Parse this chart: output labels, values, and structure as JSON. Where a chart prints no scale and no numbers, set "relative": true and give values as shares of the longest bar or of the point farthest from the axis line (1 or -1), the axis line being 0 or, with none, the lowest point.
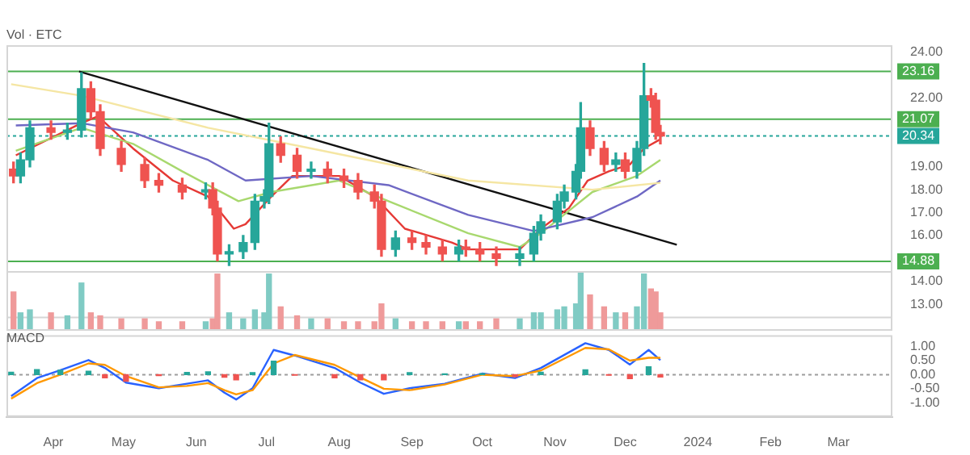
{
  "chart_data": [
    {
      "type": "candlestick",
      "x": [
        "2023-03-15",
        "2023-03-18",
        "2023-03-22",
        "2023-03-31",
        "2023-04-07",
        "2023-04-13",
        "2023-04-17",
        "2023-04-21",
        "2023-04-30",
        "2023-05-10",
        "2023-05-16",
        "2023-05-26",
        "2023-06-05",
        "2023-06-08",
        "2023-06-10",
        "2023-06-15",
        "2023-06-21",
        "2023-06-26",
        "2023-06-30",
        "2023-07-02",
        "2023-07-07",
        "2023-07-14",
        "2023-07-20",
        "2023-07-27",
        "2023-08-03",
        "2023-08-09",
        "2023-08-16",
        "2023-08-19",
        "2023-08-25",
        "2023-09-01",
        "2023-09-07",
        "2023-09-14",
        "2023-09-21",
        "2023-09-24",
        "2023-09-30",
        "2023-10-07",
        "2023-10-17",
        "2023-10-23",
        "2023-10-26",
        "2023-11-02",
        "2023-11-05",
        "2023-11-10",
        "2023-11-12",
        "2023-11-16",
        "2023-11-22",
        "2023-11-27",
        "2023-12-01",
        "2023-12-06",
        "2023-12-09",
        "2023-12-12",
        "2023-12-14",
        "2023-12-16"
      ],
      "ohlc": [
        [
          18.9,
          19.2,
          18.3,
          18.6
        ],
        [
          18.6,
          19.6,
          18.3,
          19.3
        ],
        [
          19.3,
          21.0,
          19.0,
          20.7
        ],
        [
          20.7,
          21.0,
          20.2,
          20.5
        ],
        [
          20.5,
          20.9,
          20.2,
          20.6
        ],
        [
          20.6,
          23.1,
          20.3,
          22.4
        ],
        [
          22.4,
          22.7,
          21.1,
          21.4
        ],
        [
          21.4,
          21.7,
          19.5,
          19.8
        ],
        [
          19.8,
          20.1,
          18.8,
          19.1
        ],
        [
          19.1,
          19.4,
          18.1,
          18.4
        ],
        [
          18.4,
          18.7,
          17.9,
          18.2
        ],
        [
          18.2,
          18.5,
          17.6,
          17.9
        ],
        [
          17.9,
          18.3,
          17.6,
          18.0
        ],
        [
          18.0,
          18.3,
          16.9,
          17.2
        ],
        [
          17.2,
          17.5,
          14.9,
          15.2
        ],
        [
          15.2,
          15.6,
          14.7,
          15.3
        ],
        [
          15.3,
          16.0,
          15.0,
          15.7
        ],
        [
          15.7,
          17.8,
          15.4,
          17.5
        ],
        [
          17.5,
          18.0,
          17.2,
          17.7
        ],
        [
          17.7,
          20.9,
          17.4,
          20.0
        ],
        [
          20.0,
          20.3,
          19.2,
          19.5
        ],
        [
          19.5,
          19.8,
          18.5,
          18.8
        ],
        [
          18.8,
          19.2,
          18.5,
          18.9
        ],
        [
          18.9,
          19.2,
          18.3,
          18.6
        ],
        [
          18.6,
          18.9,
          18.1,
          18.4
        ],
        [
          18.4,
          18.7,
          17.6,
          17.9
        ],
        [
          17.9,
          18.2,
          17.2,
          17.5
        ],
        [
          17.5,
          17.8,
          15.1,
          15.4
        ],
        [
          15.4,
          16.2,
          15.1,
          15.9
        ],
        [
          15.9,
          16.2,
          15.4,
          15.7
        ],
        [
          15.7,
          16.0,
          15.2,
          15.5
        ],
        [
          15.5,
          15.8,
          14.9,
          15.2
        ],
        [
          15.2,
          15.8,
          14.9,
          15.5
        ],
        [
          15.5,
          15.8,
          15.1,
          15.4
        ],
        [
          15.4,
          15.7,
          14.9,
          15.2
        ],
        [
          15.2,
          15.5,
          14.7,
          15.0
        ],
        [
          15.0,
          15.5,
          14.7,
          15.2
        ],
        [
          15.2,
          16.4,
          14.9,
          16.1
        ],
        [
          16.1,
          16.9,
          15.8,
          16.6
        ],
        [
          16.6,
          17.8,
          16.3,
          17.5
        ],
        [
          17.5,
          18.2,
          17.2,
          17.9
        ],
        [
          17.9,
          19.1,
          17.6,
          18.8
        ],
        [
          18.8,
          21.8,
          18.5,
          20.7
        ],
        [
          20.7,
          21.0,
          19.5,
          19.8
        ],
        [
          19.8,
          20.1,
          18.8,
          19.1
        ],
        [
          19.1,
          19.6,
          18.8,
          19.3
        ],
        [
          19.3,
          19.6,
          18.5,
          18.8
        ],
        [
          18.8,
          20.1,
          18.5,
          19.8
        ],
        [
          19.8,
          23.5,
          19.5,
          22.1
        ],
        [
          22.1,
          22.4,
          21.6,
          21.9
        ],
        [
          21.9,
          22.2,
          20.2,
          20.5
        ],
        [
          20.5,
          20.8,
          20.0,
          20.34
        ]
      ],
      "series": [
        {
          "type": "line",
          "color": "#f5e6a3",
          "x": [
            "2023-03-14",
            "2023-04-13",
            "2023-06-06",
            "2023-07-20",
            "2023-09-25",
            "2023-11-17",
            "2023-12-16"
          ],
          "values": [
            22.6,
            22.1,
            20.7,
            19.8,
            18.4,
            18.0,
            18.3
          ]
        },
        {
          "type": "line",
          "color": "#6f68c4",
          "x": [
            "2023-03-16",
            "2023-04-13",
            "2023-05-05",
            "2023-06-06",
            "2023-06-22",
            "2023-07-20",
            "2023-08-22",
            "2023-09-25",
            "2023-10-23",
            "2023-11-17",
            "2023-12-06",
            "2023-12-16"
          ],
          "values": [
            20.8,
            20.9,
            20.5,
            19.3,
            18.4,
            18.6,
            18.2,
            16.9,
            16.2,
            16.8,
            17.7,
            18.4
          ]
        },
        {
          "type": "line",
          "color": "#a8d86e",
          "x": [
            "2023-03-16",
            "2023-04-13",
            "2023-05-05",
            "2023-05-26",
            "2023-06-19",
            "2023-07-03",
            "2023-08-01",
            "2023-08-22",
            "2023-09-25",
            "2023-10-17",
            "2023-10-26",
            "2023-11-17",
            "2023-12-06",
            "2023-12-16"
          ],
          "values": [
            19.7,
            20.7,
            20.0,
            18.8,
            17.5,
            17.9,
            18.4,
            17.5,
            16.1,
            15.5,
            16.1,
            17.9,
            18.6,
            19.3
          ]
        },
        {
          "type": "line",
          "color": "#e53935",
          "x": [
            "2023-03-16",
            "2023-04-13",
            "2023-04-20",
            "2023-05-05",
            "2023-05-22",
            "2023-06-06",
            "2023-06-17",
            "2023-06-22",
            "2023-07-03",
            "2023-07-12",
            "2023-08-01",
            "2023-08-16",
            "2023-08-29",
            "2023-09-18",
            "2023-09-25",
            "2023-10-17",
            "2023-10-26",
            "2023-11-07",
            "2023-11-15",
            "2023-11-24",
            "2023-12-03",
            "2023-12-09",
            "2023-12-16"
          ],
          "values": [
            19.5,
            20.9,
            21.2,
            19.8,
            18.4,
            17.7,
            16.3,
            16.5,
            17.7,
            18.6,
            18.6,
            17.7,
            16.3,
            15.7,
            15.4,
            15.4,
            16.3,
            17.2,
            18.4,
            18.8,
            19.1,
            19.8,
            20.2
          ]
        },
        {
          "type": "line",
          "color": "#111111",
          "x": [
            "2023-04-12",
            "2023-12-23"
          ],
          "values": [
            23.15,
            15.6
          ]
        }
      ],
      "ref_lines": [
        {
          "axis": "y",
          "value": 23.16,
          "label": "23.16",
          "color": "#4caf50"
        },
        {
          "axis": "y",
          "value": 21.07,
          "label": "21.07",
          "color": "#4caf50"
        },
        {
          "axis": "y",
          "value": 14.88,
          "label": "14.88",
          "color": "#4caf50"
        },
        {
          "axis": "y",
          "value": 20.34,
          "label": "20.34",
          "color": "#26a69a",
          "line_style": "dotted"
        }
      ],
      "xlim": [
        "2023-03-12",
        "2024-03-24"
      ],
      "ylim": [
        12.4,
        24.3
      ],
      "yticks": [
        {
          "value": 13,
          "label": "13.00"
        },
        {
          "value": 14,
          "label": "14.00"
        },
        {
          "value": 16,
          "label": "16.00"
        },
        {
          "value": 17,
          "label": "17.00"
        },
        {
          "value": 18,
          "label": "18.00"
        },
        {
          "value": 19,
          "label": "19.00"
        },
        {
          "value": 22,
          "label": "22.00"
        },
        {
          "value": 24,
          "label": "24.00"
        }
      ],
      "tick_labels": "y"
    },
    {
      "type": "bar",
      "title": "Vol · ETC",
      "relative": true,
      "tick_labels": false,
      "xlim": [
        "2023-03-12",
        "2024-03-24"
      ],
      "x": [
        "2023-03-15",
        "2023-03-18",
        "2023-03-22",
        "2023-03-31",
        "2023-04-07",
        "2023-04-13",
        "2023-04-17",
        "2023-04-21",
        "2023-04-30",
        "2023-05-10",
        "2023-05-16",
        "2023-05-26",
        "2023-06-05",
        "2023-06-08",
        "2023-06-10",
        "2023-06-15",
        "2023-06-21",
        "2023-06-26",
        "2023-06-30",
        "2023-07-02",
        "2023-07-07",
        "2023-07-14",
        "2023-07-20",
        "2023-07-27",
        "2023-08-03",
        "2023-08-09",
        "2023-08-16",
        "2023-08-19",
        "2023-08-25",
        "2023-09-01",
        "2023-09-07",
        "2023-09-14",
        "2023-09-21",
        "2023-09-24",
        "2023-09-30",
        "2023-10-07",
        "2023-10-17",
        "2023-10-23",
        "2023-10-26",
        "2023-11-02",
        "2023-11-05",
        "2023-11-10",
        "2023-11-12",
        "2023-11-16",
        "2023-11-22",
        "2023-11-27",
        "2023-12-01",
        "2023-12-06",
        "2023-12-09",
        "2023-12-12",
        "2023-12-14",
        "2023-12-16"
      ],
      "values": [
        0.65,
        0.3,
        0.35,
        0.3,
        0.25,
        0.8,
        0.3,
        0.25,
        0.2,
        0.2,
        0.15,
        0.15,
        0.15,
        0.2,
        0.95,
        0.3,
        0.2,
        0.35,
        0.3,
        0.95,
        0.4,
        0.25,
        0.2,
        0.2,
        0.15,
        0.15,
        0.15,
        0.45,
        0.2,
        0.15,
        0.15,
        0.15,
        0.15,
        0.15,
        0.15,
        0.2,
        0.2,
        0.3,
        0.3,
        0.35,
        0.4,
        0.45,
        1,
        0.6,
        0.4,
        0.3,
        0.3,
        0.4,
        0.95,
        0.7,
        0.65,
        0.3
      ],
      "colors": [
        "#ef9a9a",
        "#80cbc4",
        "#80cbc4",
        "#ef9a9a",
        "#80cbc4",
        "#80cbc4",
        "#ef9a9a",
        "#ef9a9a",
        "#ef9a9a",
        "#ef9a9a",
        "#ef9a9a",
        "#ef9a9a",
        "#80cbc4",
        "#ef9a9a",
        "#ef9a9a",
        "#80cbc4",
        "#80cbc4",
        "#80cbc4",
        "#80cbc4",
        "#80cbc4",
        "#ef9a9a",
        "#ef9a9a",
        "#80cbc4",
        "#ef9a9a",
        "#ef9a9a",
        "#ef9a9a",
        "#ef9a9a",
        "#ef9a9a",
        "#80cbc4",
        "#ef9a9a",
        "#ef9a9a",
        "#ef9a9a",
        "#80cbc4",
        "#ef9a9a",
        "#ef9a9a",
        "#ef9a9a",
        "#80cbc4",
        "#80cbc4",
        "#80cbc4",
        "#80cbc4",
        "#80cbc4",
        "#80cbc4",
        "#80cbc4",
        "#ef9a9a",
        "#ef9a9a",
        "#80cbc4",
        "#ef9a9a",
        "#80cbc4",
        "#80cbc4",
        "#ef9a9a",
        "#ef9a9a",
        "#ef9a9a"
      ]
    },
    {
      "type": "line",
      "title": "MACD",
      "xlim": [
        "2023-03-12",
        "2024-03-24"
      ],
      "ylim": [
        -1.5,
        1.4
      ],
      "x": [
        "2023-03-14",
        "2023-03-25",
        "2023-04-04",
        "2023-04-16",
        "2023-04-23",
        "2023-05-02",
        "2023-05-16",
        "2023-05-28",
        "2023-06-06",
        "2023-06-13",
        "2023-06-18",
        "2023-06-25",
        "2023-07-04",
        "2023-07-13",
        "2023-07-30",
        "2023-08-10",
        "2023-08-20",
        "2023-08-31",
        "2023-09-15",
        "2023-10-01",
        "2023-10-15",
        "2023-10-26",
        "2023-11-14",
        "2023-11-24",
        "2023-12-03",
        "2023-12-11",
        "2023-12-16"
      ],
      "series": [
        {
          "type": "bar",
          "values": [
            0.09,
            0.18,
            0.16,
            0.12,
            -0.11,
            -0.23,
            -0.03,
            0.08,
            0.1,
            -0.09,
            -0.18,
            0.07,
            0.48,
            -0.02,
            -0.11,
            -0.18,
            -0.18,
            0.07,
            0.03,
            0.04,
            -0.07,
            0.09,
            0.17,
            -0.02,
            -0.14,
            0.28,
            -0.08
          ],
          "colors": [
            "#26a69a",
            "#26a69a",
            "#26a69a",
            "#26a69a",
            "#ef5350",
            "#ef5350",
            "#ef5350",
            "#26a69a",
            "#26a69a",
            "#ef5350",
            "#ef5350",
            "#26a69a",
            "#26a69a",
            "#ef5350",
            "#ef5350",
            "#ef5350",
            "#ef5350",
            "#26a69a",
            "#26a69a",
            "#26a69a",
            "#ef5350",
            "#26a69a",
            "#26a69a",
            "#ef5350",
            "#ef5350",
            "#26a69a",
            "#ef5350"
          ]
        },
        {
          "type": "line",
          "color": "#ff9800",
          "values": [
            -0.85,
            -0.3,
            0.0,
            0.4,
            0.35,
            -0.05,
            -0.45,
            -0.4,
            -0.3,
            -0.55,
            -0.7,
            -0.55,
            0.4,
            0.7,
            0.35,
            -0.1,
            -0.5,
            -0.55,
            -0.35,
            0.0,
            -0.05,
            0.15,
            0.95,
            0.9,
            0.5,
            0.6,
            0.6
          ]
        },
        {
          "type": "line",
          "color": "#2962ff",
          "values": [
            -0.76,
            -0.12,
            0.16,
            0.52,
            0.24,
            -0.28,
            -0.48,
            -0.32,
            -0.2,
            -0.64,
            -0.88,
            -0.48,
            0.88,
            0.68,
            0.24,
            -0.28,
            -0.68,
            -0.48,
            -0.32,
            0.04,
            -0.12,
            0.24,
            1.12,
            0.88,
            0.36,
            0.88,
            0.52
          ]
        }
      ],
      "ref_lines": [
        {
          "axis": "y",
          "value": 0,
          "line_style": "dotted",
          "color": "#9e9e9e"
        }
      ],
      "xticks": [
        {
          "value": "2023-04-01",
          "label": "Apr"
        },
        {
          "value": "2023-05-01",
          "label": "May"
        },
        {
          "value": "2023-06-01",
          "label": "Jun"
        },
        {
          "value": "2023-07-01",
          "label": "Jul"
        },
        {
          "value": "2023-08-01",
          "label": "Aug"
        },
        {
          "value": "2023-09-01",
          "label": "Sep"
        },
        {
          "value": "2023-10-01",
          "label": "Oct"
        },
        {
          "value": "2023-11-01",
          "label": "Nov"
        },
        {
          "value": "2023-12-01",
          "label": "Dec"
        },
        {
          "value": "2024-01-01",
          "label": "2024"
        },
        {
          "value": "2024-02-01",
          "label": "Feb"
        },
        {
          "value": "2024-03-01",
          "label": "Mar"
        }
      ],
      "yticks": [
        {
          "value": -1,
          "label": "-1.00"
        },
        {
          "value": -0.5,
          "label": "-0.50"
        },
        {
          "value": 0,
          "label": "0.00"
        },
        {
          "value": 0.5,
          "label": "0.50"
        },
        {
          "value": 1,
          "label": "1.00"
        }
      ]
    }
  ]
}
